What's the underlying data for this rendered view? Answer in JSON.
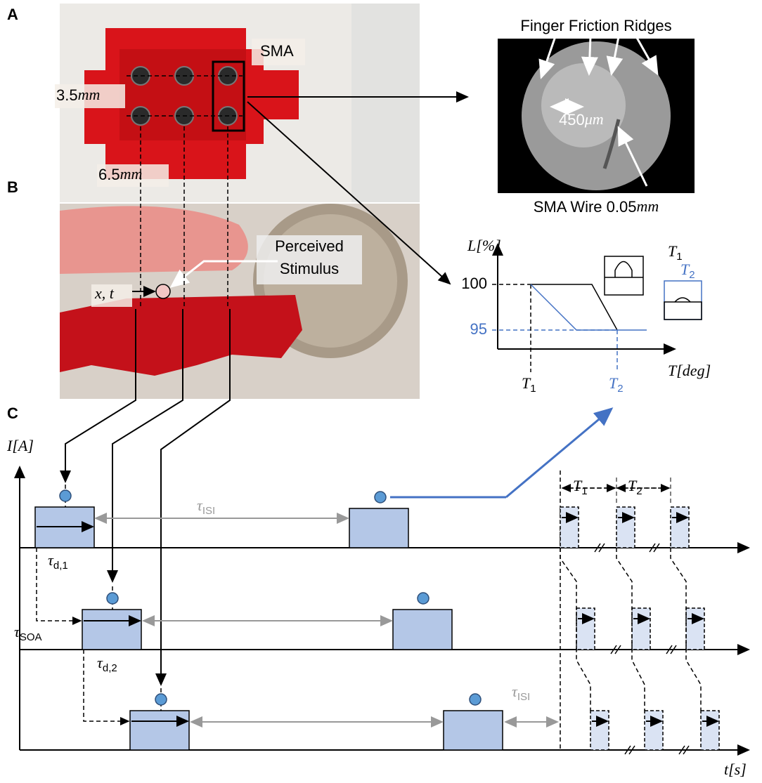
{
  "panel_labels": [
    "A",
    "B",
    "C"
  ],
  "photo_a": {
    "sma": "SMA",
    "vertical_spacing": {
      "value": "3.5",
      "unit": "mm"
    },
    "horizontal_spacing": {
      "value": "6.5",
      "unit": "mm"
    }
  },
  "microscope": {
    "title": "Finger Friction Ridges",
    "scale": {
      "value": "450",
      "unit": "μm"
    },
    "caption": {
      "text": "SMA Wire 0.05",
      "unit": "mm"
    }
  },
  "photo_b": {
    "stimulus": [
      "Perceived",
      "Stimulus"
    ],
    "position": "x, t"
  },
  "graph": {
    "y_label": {
      "base": "L",
      "rest": "[%]"
    },
    "y_values": [
      100,
      95
    ],
    "x_label": {
      "base": "T",
      "rest": "[deg]"
    },
    "x_marks": [
      {
        "base": "T",
        "sub": "1"
      },
      {
        "base": "T",
        "sub": "2"
      }
    ],
    "icons": [
      {
        "base": "T",
        "sub": "1"
      },
      {
        "base": "T",
        "sub": "2"
      }
    ]
  },
  "timing": {
    "y_label": {
      "base": "I",
      "rest": "[A]"
    },
    "x_label": {
      "base": "t",
      "rest": "[s]"
    },
    "labels": [
      {
        "base": "τ",
        "sub": "ISI"
      },
      {
        "base": "τ",
        "sub": "d,1"
      },
      {
        "base": "τ",
        "sub": "SOA"
      },
      {
        "base": "τ",
        "sub": "d,2"
      },
      {
        "base": "τ",
        "sub": "ISI"
      },
      {
        "base": "T",
        "sub": "1"
      },
      {
        "base": "T",
        "sub": "2"
      }
    ]
  }
}
